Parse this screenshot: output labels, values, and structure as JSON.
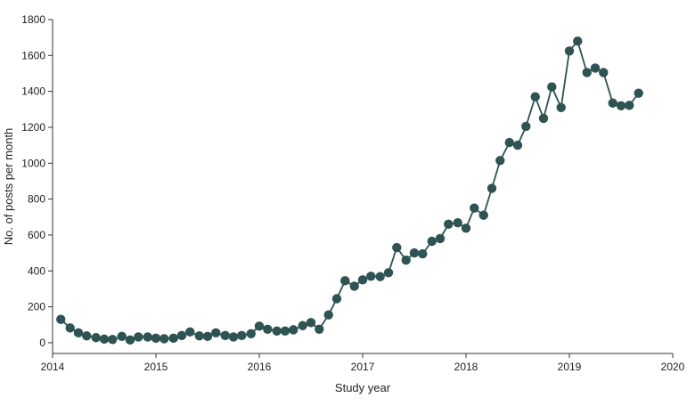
{
  "chart_data": {
    "type": "line",
    "title": "",
    "xlabel": "Study year",
    "ylabel": "No. of posts per month",
    "xlim": [
      2014,
      2020
    ],
    "ylim": [
      -60,
      1800
    ],
    "x_ticks": [
      "2014",
      "2015",
      "2016",
      "2017",
      "2018",
      "2019",
      "2020"
    ],
    "y_ticks": [
      "0",
      "200",
      "400",
      "600",
      "800",
      "1000",
      "1200",
      "1400",
      "1600",
      "1800"
    ],
    "grid": false,
    "legend": "none",
    "line_color": "#2e5352",
    "marker_color": "#2e5352",
    "series": [
      {
        "x": [
          2014.08,
          2014.17,
          2014.25,
          2014.33,
          2014.42,
          2014.5,
          2014.58,
          2014.67,
          2014.75,
          2014.83,
          2014.92,
          2015.0,
          2015.08,
          2015.17,
          2015.25,
          2015.33,
          2015.42,
          2015.5,
          2015.58,
          2015.67,
          2015.75,
          2015.83,
          2015.92,
          2016.0,
          2016.08,
          2016.17,
          2016.25,
          2016.33,
          2016.42,
          2016.5,
          2016.58,
          2016.67,
          2016.75,
          2016.83,
          2016.92,
          2017.0,
          2017.08,
          2017.17,
          2017.25,
          2017.33,
          2017.42,
          2017.5,
          2017.58,
          2017.67,
          2017.75,
          2017.83,
          2017.92,
          2018.0,
          2018.08,
          2018.17,
          2018.25,
          2018.33,
          2018.42,
          2018.5,
          2018.58,
          2018.67,
          2018.75,
          2018.83,
          2018.92,
          2019.0,
          2019.08,
          2019.17,
          2019.25,
          2019.33,
          2019.42,
          2019.5,
          2019.58,
          2019.67
        ],
        "y": [
          130,
          82,
          55,
          38,
          28,
          20,
          18,
          35,
          15,
          32,
          32,
          25,
          22,
          25,
          40,
          60,
          38,
          35,
          55,
          40,
          32,
          40,
          50,
          92,
          75,
          65,
          65,
          72,
          95,
          112,
          75,
          155,
          245,
          345,
          315,
          350,
          370,
          368,
          390,
          530,
          460,
          500,
          495,
          565,
          580,
          660,
          668,
          638,
          750,
          710,
          860,
          1015,
          1115,
          1100,
          1205,
          1370,
          1250,
          1425,
          1310,
          1625,
          1680,
          1505,
          1530,
          1505,
          1335,
          1320,
          1322,
          1390
        ]
      }
    ]
  }
}
